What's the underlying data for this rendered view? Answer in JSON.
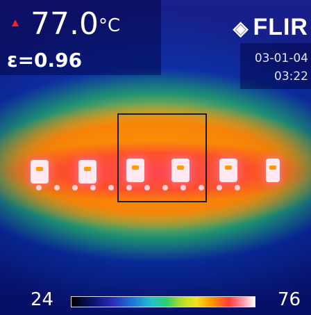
{
  "reading": {
    "temperature": "77.0",
    "unit": "°C",
    "emissivity": "ε=0.96"
  },
  "brand": {
    "name": "FLIR",
    "logo_icon": "flir-diamond-logo-icon"
  },
  "datetime": {
    "date": "03-01-04",
    "time": "03:22"
  },
  "scale": {
    "min": "24",
    "max": "76"
  },
  "colors": {
    "background": "#06156e",
    "marker": "#ff2020",
    "hot": "#ff3b3b"
  }
}
